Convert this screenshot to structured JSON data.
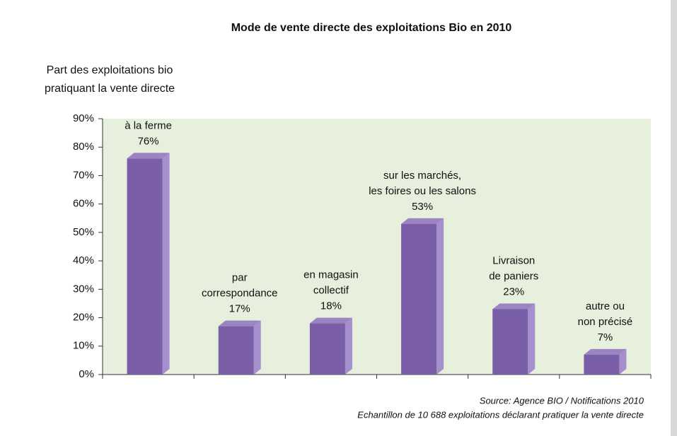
{
  "chart_data": {
    "type": "bar",
    "title": "Mode de vente directe des exploitations Bio en 2010",
    "ylabel": [
      "Part des exploitations bio",
      "pratiquant la vente directe"
    ],
    "categories": [
      [
        "à la ferme"
      ],
      [
        "par",
        "correspondance"
      ],
      [
        "en magasin",
        "collectif"
      ],
      [
        "sur les marchés,",
        "les foires ou les salons"
      ],
      [
        "Livraison",
        "de paniers"
      ],
      [
        "autre ou",
        "non précisé"
      ]
    ],
    "values": [
      76,
      17,
      18,
      53,
      23,
      7
    ],
    "value_labels": [
      "76%",
      "17%",
      "18%",
      "53%",
      "23%",
      "7%"
    ],
    "color": "#7b5ea8",
    "ylim": [
      0,
      90
    ],
    "yticks": [
      {
        "value": 0,
        "label": "0%"
      },
      {
        "value": 10,
        "label": "10%"
      },
      {
        "value": 20,
        "label": "20%"
      },
      {
        "value": 30,
        "label": "30%"
      },
      {
        "value": 40,
        "label": "40%"
      },
      {
        "value": 50,
        "label": "50%"
      },
      {
        "value": 60,
        "label": "60%"
      },
      {
        "value": 70,
        "label": "70%"
      },
      {
        "value": 80,
        "label": "80%"
      },
      {
        "value": 90,
        "label": "90%"
      }
    ],
    "notes": [
      "Source: Agence BIO / Notifications 2010",
      "Echantillon de 10 688 exploitations déclarant pratiquer la vente directe"
    ]
  }
}
